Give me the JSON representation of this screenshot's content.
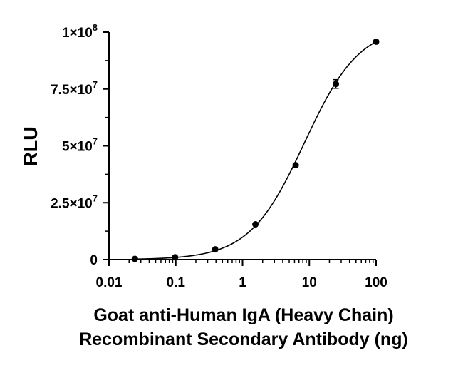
{
  "chart_data": {
    "type": "scatter",
    "xlabel_lines": [
      "Goat anti-Human IgA (Heavy Chain)",
      "Recombinant Secondary Antibody (ng)"
    ],
    "ylabel": "RLU",
    "x_scale": "log",
    "xlim": [
      0.01,
      100
    ],
    "ylim": [
      0,
      100000000
    ],
    "x_ticks": [
      {
        "value": 0.01,
        "label": "0.01"
      },
      {
        "value": 0.1,
        "label": "0.1"
      },
      {
        "value": 1,
        "label": "1"
      },
      {
        "value": 10,
        "label": "10"
      },
      {
        "value": 100,
        "label": "100"
      }
    ],
    "y_ticks": [
      {
        "value": 0,
        "mantissa": "0",
        "exponent": ""
      },
      {
        "value": 25000000,
        "mantissa": "2.5×10",
        "exponent": "7"
      },
      {
        "value": 50000000,
        "mantissa": "5×10",
        "exponent": "7"
      },
      {
        "value": 75000000,
        "mantissa": "7.5×10",
        "exponent": "7"
      },
      {
        "value": 100000000,
        "mantissa": "1×10",
        "exponent": "8"
      }
    ],
    "points": [
      {
        "x": 0.0244,
        "y": 300000
      },
      {
        "x": 0.0977,
        "y": 1000000
      },
      {
        "x": 0.39,
        "y": 4500000
      },
      {
        "x": 1.56,
        "y": 15500000
      },
      {
        "x": 6.25,
        "y": 41500000
      },
      {
        "x": 25,
        "y": 77200000,
        "error": 1900000
      },
      {
        "x": 100,
        "y": 95800000
      }
    ],
    "fit": {
      "model": "4PL",
      "bottom": 0,
      "top": 103000000,
      "ec50": 8.5,
      "hill": 1.05
    },
    "colors": {
      "marker": "#000000",
      "line": "#000000",
      "axis": "#000000"
    },
    "grid": false,
    "legend": "none"
  }
}
